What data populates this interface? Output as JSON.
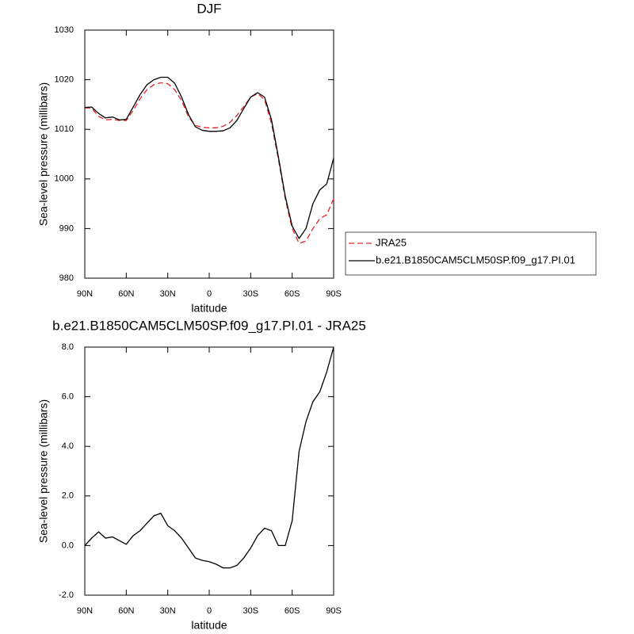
{
  "chart_data": [
    {
      "type": "line",
      "title": "DJF",
      "xlabel": "latitude",
      "ylabel": "Sea-level pressure (millibars)",
      "x": [
        90,
        85,
        80,
        75,
        70,
        65,
        60,
        55,
        50,
        45,
        40,
        35,
        30,
        25,
        20,
        15,
        10,
        5,
        0,
        -5,
        -10,
        -15,
        -20,
        -25,
        -30,
        -35,
        -40,
        -45,
        -50,
        -55,
        -60,
        -65,
        -70,
        -75,
        -80,
        -85,
        -90
      ],
      "series": [
        {
          "name": "JRA25",
          "color": "#e8262a",
          "dash": true,
          "values": [
            1014.3,
            1014.3,
            1012.6,
            1011.9,
            1012.0,
            1011.8,
            1011.8,
            1013.8,
            1016.2,
            1018.0,
            1019.0,
            1019.4,
            1019.2,
            1018.0,
            1015.8,
            1012.5,
            1010.8,
            1010.4,
            1010.3,
            1010.3,
            1010.6,
            1011.4,
            1012.8,
            1014.6,
            1016.5,
            1017.2,
            1016.0,
            1011.2,
            1004.0,
            996.0,
            990.0,
            987.0,
            987.5,
            990.0,
            992.0,
            992.8,
            996.0
          ]
        },
        {
          "name": "b.e21.B1850CAM5CLM50SP.f09_g17.PI.01",
          "color": "#000000",
          "dash": false,
          "values": [
            1014.4,
            1014.5,
            1013.2,
            1012.3,
            1012.5,
            1011.9,
            1012.0,
            1014.5,
            1017.0,
            1019.0,
            1020.0,
            1020.5,
            1020.5,
            1019.3,
            1016.5,
            1013.0,
            1010.5,
            1009.8,
            1009.6,
            1009.6,
            1009.7,
            1010.3,
            1011.8,
            1014.2,
            1016.5,
            1017.4,
            1016.5,
            1012.0,
            1004.5,
            996.5,
            990.5,
            988.0,
            990.0,
            995.0,
            997.8,
            999.0,
            1004.2
          ]
        }
      ],
      "xlim": [
        90,
        -90
      ],
      "xticks": [
        {
          "value": 90,
          "label": "90N"
        },
        {
          "value": 60,
          "label": "60N"
        },
        {
          "value": 30,
          "label": "30N"
        },
        0,
        {
          "value": -30,
          "label": "30S"
        },
        {
          "value": -60,
          "label": "60S"
        },
        {
          "value": -90,
          "label": "90S"
        }
      ],
      "ylim": [
        980,
        1030
      ],
      "yticks": [
        980,
        990,
        1000,
        1010,
        1020,
        1030
      ],
      "legend": "right"
    },
    {
      "type": "line",
      "title": "b.e21.B1850CAM5CLM50SP.f09_g17.PI.01 - JRA25",
      "xlabel": "latitude",
      "ylabel": "Sea-level pressure (millibars)",
      "x": [
        90,
        85,
        80,
        75,
        70,
        65,
        60,
        55,
        50,
        45,
        40,
        35,
        30,
        25,
        20,
        15,
        10,
        5,
        0,
        -5,
        -10,
        -15,
        -20,
        -25,
        -30,
        -35,
        -40,
        -45,
        -50,
        -55,
        -60,
        -65,
        -70,
        -75,
        -80,
        -85,
        -90
      ],
      "values": [
        0.0,
        0.3,
        0.55,
        0.3,
        0.35,
        0.2,
        0.05,
        0.4,
        0.6,
        0.9,
        1.2,
        1.3,
        0.8,
        0.6,
        0.3,
        -0.1,
        -0.5,
        -0.6,
        -0.65,
        -0.75,
        -0.9,
        -0.9,
        -0.8,
        -0.5,
        -0.1,
        0.4,
        0.7,
        0.6,
        0.0,
        0.0,
        1.0,
        3.8,
        5.0,
        5.8,
        6.2,
        7.0,
        8.0
      ],
      "color": "#000000",
      "xlim": [
        90,
        -90
      ],
      "xticks": [
        {
          "value": 90,
          "label": "90N"
        },
        {
          "value": 60,
          "label": "60N"
        },
        {
          "value": 30,
          "label": "30N"
        },
        0,
        {
          "value": -30,
          "label": "30S"
        },
        {
          "value": -60,
          "label": "60S"
        },
        {
          "value": -90,
          "label": "90S"
        }
      ],
      "ylim": [
        -2,
        8
      ],
      "yticks": [
        {
          "value": -2,
          "label": "-2.0"
        },
        {
          "value": 0,
          "label": "0.0"
        },
        {
          "value": 2,
          "label": "2.0"
        },
        {
          "value": 4,
          "label": "4.0"
        },
        {
          "value": 6,
          "label": "6.0"
        },
        {
          "value": 8,
          "label": "8.0"
        }
      ]
    }
  ]
}
